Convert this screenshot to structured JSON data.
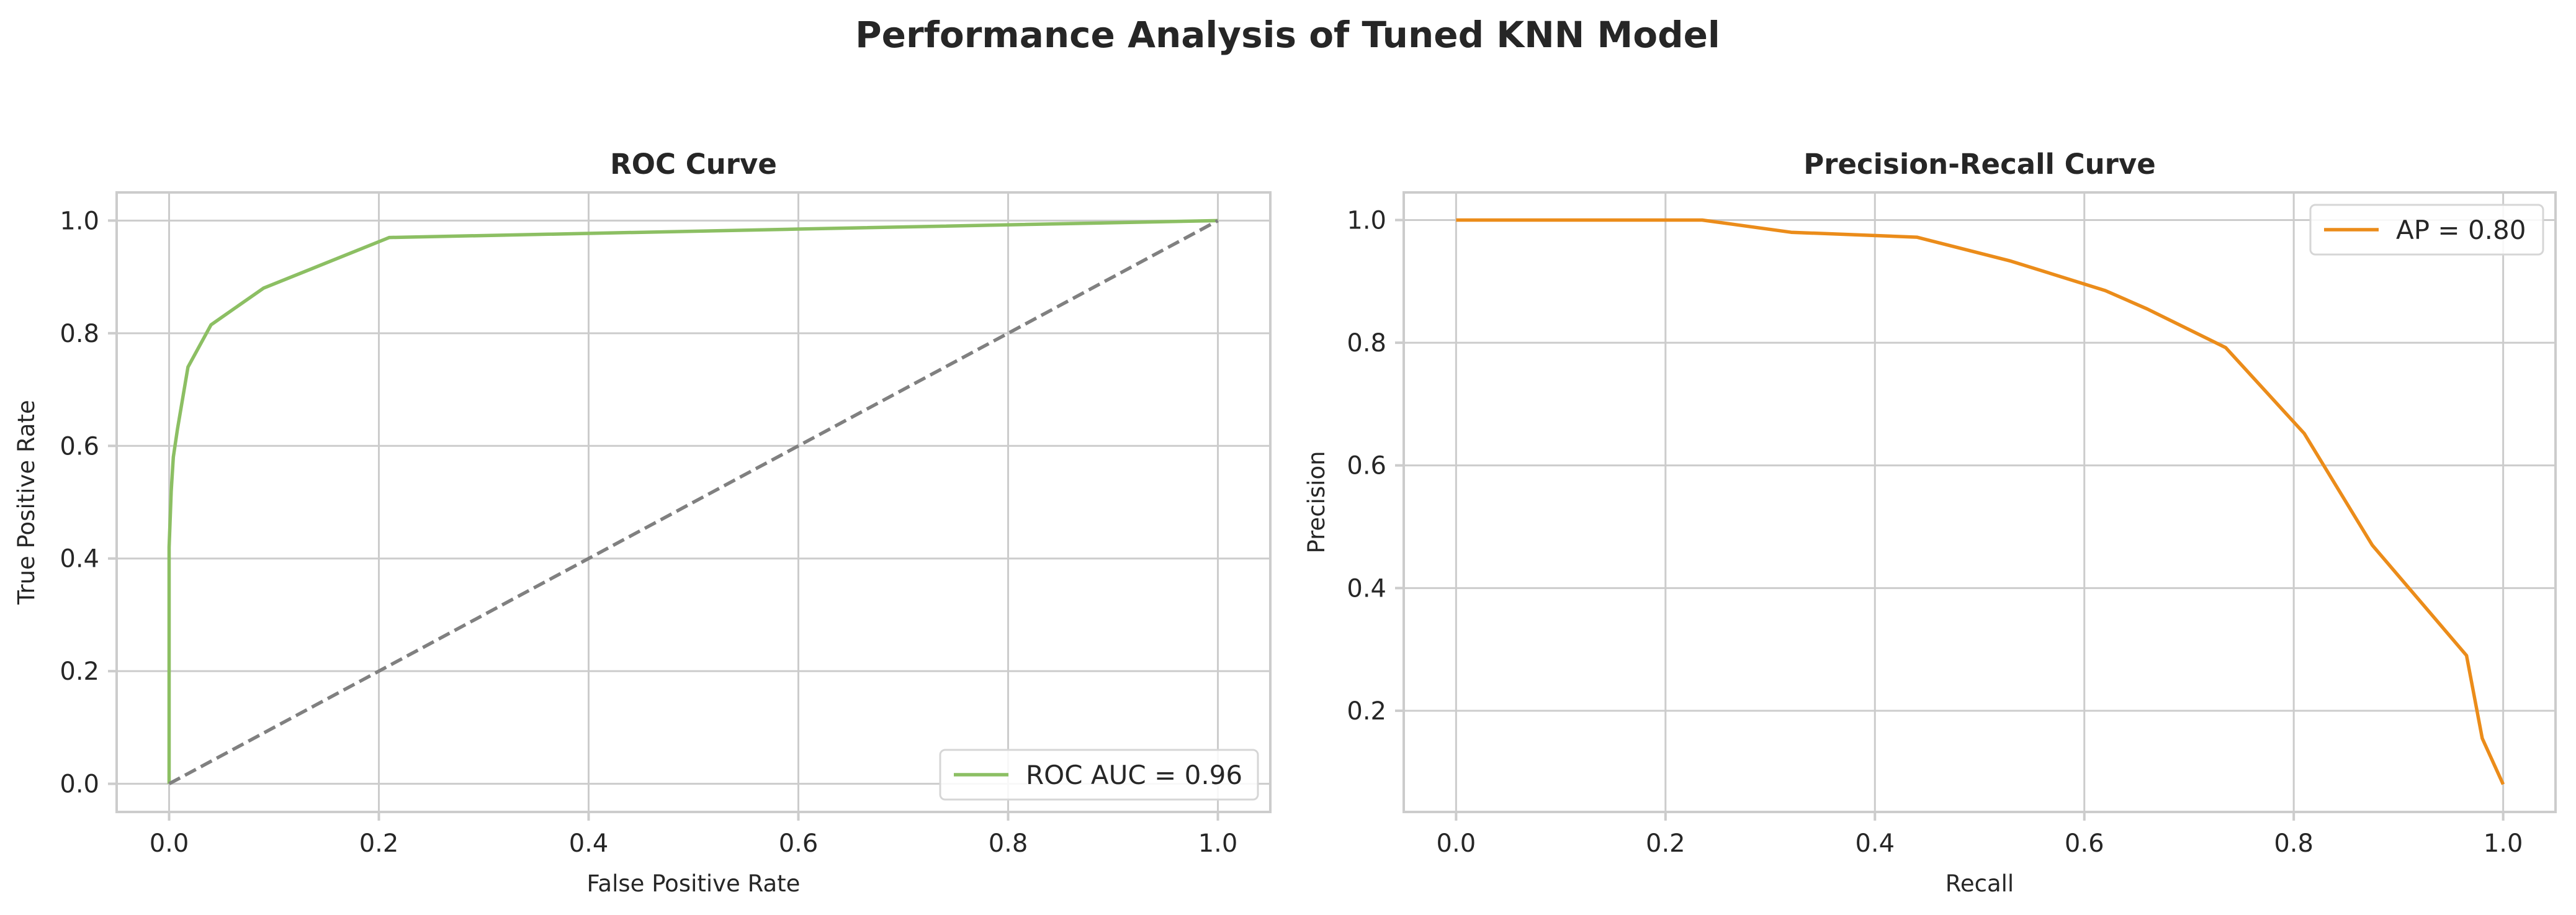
{
  "figure": {
    "title": "Performance Analysis of Tuned KNN Model"
  },
  "chart_data": [
    {
      "type": "line",
      "title": "ROC Curve",
      "xlabel": "False Positive Rate",
      "ylabel": "True Positive Rate",
      "xlim": [
        -0.05,
        1.05
      ],
      "ylim": [
        -0.05,
        1.05
      ],
      "xticks": [
        "0.0",
        "0.2",
        "0.4",
        "0.6",
        "0.8",
        "1.0"
      ],
      "yticks": [
        "0.0",
        "0.2",
        "0.4",
        "0.6",
        "0.8",
        "1.0"
      ],
      "grid": true,
      "legend_loc": "lower-right",
      "series": [
        {
          "name": "ROC AUC = 0.96",
          "color": "#8cbf63",
          "style": "solid",
          "x": [
            0.0,
            0.0,
            0.002,
            0.004,
            0.008,
            0.018,
            0.04,
            0.09,
            0.21,
            0.6,
            1.0
          ],
          "y": [
            0.0,
            0.42,
            0.52,
            0.58,
            0.63,
            0.74,
            0.815,
            0.88,
            0.97,
            0.985,
            1.0
          ]
        },
        {
          "name": "",
          "color": "#808080",
          "style": "dashed",
          "x": [
            0.0,
            1.0
          ],
          "y": [
            0.0,
            1.0
          ]
        }
      ]
    },
    {
      "type": "line",
      "title": "Precision-Recall Curve",
      "xlabel": "Recall",
      "ylabel": "Precision",
      "xlim": [
        -0.05,
        1.05
      ],
      "ylim": [
        0.035,
        1.045
      ],
      "xticks": [
        "0.0",
        "0.2",
        "0.4",
        "0.6",
        "0.8",
        "1.0"
      ],
      "yticks": [
        "0.2",
        "0.4",
        "0.6",
        "0.8",
        "1.0"
      ],
      "grid": true,
      "legend_loc": "upper-right",
      "series": [
        {
          "name": "AP = 0.80",
          "color": "#eb8c1a",
          "style": "solid",
          "x": [
            0.0,
            0.235,
            0.32,
            0.44,
            0.53,
            0.62,
            0.66,
            0.735,
            0.81,
            0.875,
            0.965,
            0.98,
            1.0
          ],
          "y": [
            1.0,
            1.0,
            0.98,
            0.972,
            0.933,
            0.885,
            0.855,
            0.792,
            0.652,
            0.47,
            0.29,
            0.155,
            0.08
          ]
        }
      ]
    }
  ]
}
